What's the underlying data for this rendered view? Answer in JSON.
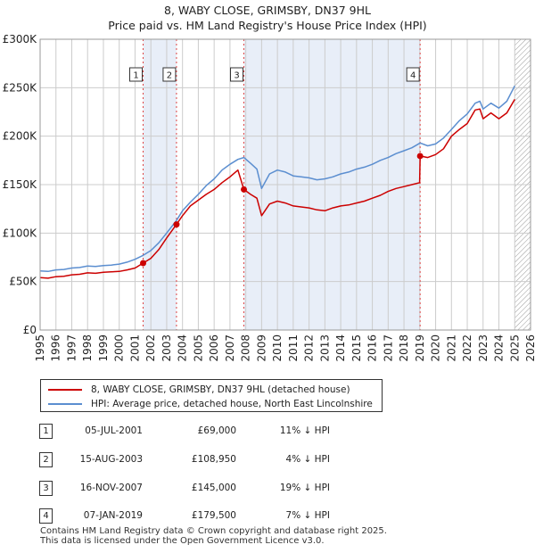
{
  "title_line1": "8, WABY CLOSE, GRIMSBY, DN37 9HL",
  "title_line2": "Price paid vs. HM Land Registry's House Price Index (HPI)",
  "colors": {
    "property": "#cc0000",
    "hpi": "#5b8ed0",
    "shade": "#e8eef8",
    "marker_line": "#dd4444",
    "grid": "#cccccc"
  },
  "chart_data": {
    "type": "line",
    "xlim": [
      1995,
      2026
    ],
    "ylim": [
      0,
      300000
    ],
    "yticks": [
      0,
      50000,
      100000,
      150000,
      200000,
      250000,
      300000
    ],
    "ytick_labels": [
      "£0",
      "£50K",
      "£100K",
      "£150K",
      "£200K",
      "£250K",
      "£300K"
    ],
    "xticks": [
      1995,
      1996,
      1997,
      1998,
      1999,
      2000,
      2001,
      2002,
      2003,
      2004,
      2005,
      2006,
      2007,
      2008,
      2009,
      2010,
      2011,
      2012,
      2013,
      2014,
      2015,
      2016,
      2017,
      2018,
      2019,
      2020,
      2021,
      2022,
      2023,
      2024,
      2025,
      2026
    ],
    "xtick_labels": [
      "1995",
      "1996",
      "1997",
      "1998",
      "1999",
      "2000",
      "2001",
      "2002",
      "2003",
      "2004",
      "2005",
      "2006",
      "2007",
      "2008",
      "2009",
      "2010",
      "2011",
      "2012",
      "2013",
      "2014",
      "2015",
      "2016",
      "2017",
      "2018",
      "2019",
      "2020",
      "2021",
      "2022",
      "2023",
      "2024",
      "2025",
      "2026"
    ],
    "shaded_spans": [
      [
        2001.51,
        2003.62
      ],
      [
        2007.88,
        2019.02
      ]
    ],
    "future_hatch_start": 2025.0,
    "series": [
      {
        "name": "8, WABY CLOSE, GRIMSBY, DN37 9HL (detached house)",
        "color": "#cc0000",
        "points": [
          [
            1995.0,
            54000
          ],
          [
            1995.5,
            53500
          ],
          [
            1996.0,
            55000
          ],
          [
            1996.5,
            55500
          ],
          [
            1997.0,
            57000
          ],
          [
            1997.5,
            57500
          ],
          [
            1998.0,
            59000
          ],
          [
            1998.5,
            58500
          ],
          [
            1999.0,
            59500
          ],
          [
            1999.5,
            60000
          ],
          [
            2000.0,
            60500
          ],
          [
            2000.5,
            62000
          ],
          [
            2001.0,
            64000
          ],
          [
            2001.51,
            69000
          ],
          [
            2002.0,
            74000
          ],
          [
            2002.5,
            83000
          ],
          [
            2003.0,
            95000
          ],
          [
            2003.62,
            108950
          ],
          [
            2004.0,
            118000
          ],
          [
            2004.5,
            128000
          ],
          [
            2005.0,
            134000
          ],
          [
            2005.5,
            140000
          ],
          [
            2006.0,
            145000
          ],
          [
            2006.5,
            152000
          ],
          [
            2007.0,
            158000
          ],
          [
            2007.5,
            165000
          ],
          [
            2007.88,
            145000
          ],
          [
            2008.3,
            140000
          ],
          [
            2008.7,
            136000
          ],
          [
            2009.0,
            118000
          ],
          [
            2009.5,
            130000
          ],
          [
            2010.0,
            133000
          ],
          [
            2010.5,
            131000
          ],
          [
            2011.0,
            128000
          ],
          [
            2011.5,
            127000
          ],
          [
            2012.0,
            126000
          ],
          [
            2012.5,
            124000
          ],
          [
            2013.0,
            123000
          ],
          [
            2013.5,
            126000
          ],
          [
            2014.0,
            128000
          ],
          [
            2014.5,
            129000
          ],
          [
            2015.0,
            131000
          ],
          [
            2015.5,
            133000
          ],
          [
            2016.0,
            136000
          ],
          [
            2016.5,
            139000
          ],
          [
            2017.0,
            143000
          ],
          [
            2017.5,
            146000
          ],
          [
            2018.0,
            148000
          ],
          [
            2018.5,
            150000
          ],
          [
            2018.99,
            152000
          ],
          [
            2019.02,
            179500
          ],
          [
            2019.5,
            178000
          ],
          [
            2020.0,
            181000
          ],
          [
            2020.5,
            187000
          ],
          [
            2021.0,
            200000
          ],
          [
            2021.5,
            207000
          ],
          [
            2022.0,
            213000
          ],
          [
            2022.5,
            227000
          ],
          [
            2022.8,
            228000
          ],
          [
            2023.0,
            218000
          ],
          [
            2023.5,
            224000
          ],
          [
            2024.0,
            218000
          ],
          [
            2024.5,
            224000
          ],
          [
            2025.0,
            238000
          ]
        ]
      },
      {
        "name": "HPI: Average price, detached house, North East Lincolnshire",
        "color": "#5b8ed0",
        "points": [
          [
            1995.0,
            61000
          ],
          [
            1995.5,
            60500
          ],
          [
            1996.0,
            62000
          ],
          [
            1996.5,
            62500
          ],
          [
            1997.0,
            64000
          ],
          [
            1997.5,
            64500
          ],
          [
            1998.0,
            66000
          ],
          [
            1998.5,
            65500
          ],
          [
            1999.0,
            66500
          ],
          [
            1999.5,
            67000
          ],
          [
            2000.0,
            68000
          ],
          [
            2000.5,
            70000
          ],
          [
            2001.0,
            73000
          ],
          [
            2001.51,
            77000
          ],
          [
            2002.0,
            82000
          ],
          [
            2002.5,
            90000
          ],
          [
            2003.0,
            100000
          ],
          [
            2003.62,
            113000
          ],
          [
            2004.0,
            123000
          ],
          [
            2004.5,
            132000
          ],
          [
            2005.0,
            140000
          ],
          [
            2005.5,
            149000
          ],
          [
            2006.0,
            156000
          ],
          [
            2006.5,
            165000
          ],
          [
            2007.0,
            171000
          ],
          [
            2007.5,
            176000
          ],
          [
            2007.88,
            178000
          ],
          [
            2008.3,
            172000
          ],
          [
            2008.7,
            166000
          ],
          [
            2009.0,
            146000
          ],
          [
            2009.5,
            161000
          ],
          [
            2010.0,
            165000
          ],
          [
            2010.5,
            163000
          ],
          [
            2011.0,
            159000
          ],
          [
            2011.5,
            158000
          ],
          [
            2012.0,
            157000
          ],
          [
            2012.5,
            155000
          ],
          [
            2013.0,
            156000
          ],
          [
            2013.5,
            158000
          ],
          [
            2014.0,
            161000
          ],
          [
            2014.5,
            163000
          ],
          [
            2015.0,
            166000
          ],
          [
            2015.5,
            168000
          ],
          [
            2016.0,
            171000
          ],
          [
            2016.5,
            175000
          ],
          [
            2017.0,
            178000
          ],
          [
            2017.5,
            182000
          ],
          [
            2018.0,
            185000
          ],
          [
            2018.5,
            188000
          ],
          [
            2019.02,
            193000
          ],
          [
            2019.5,
            190000
          ],
          [
            2020.0,
            192000
          ],
          [
            2020.5,
            198000
          ],
          [
            2021.0,
            207000
          ],
          [
            2021.5,
            216000
          ],
          [
            2022.0,
            223000
          ],
          [
            2022.5,
            234000
          ],
          [
            2022.8,
            236000
          ],
          [
            2023.0,
            228000
          ],
          [
            2023.5,
            234000
          ],
          [
            2024.0,
            229000
          ],
          [
            2024.5,
            236000
          ],
          [
            2025.0,
            252000
          ]
        ]
      }
    ],
    "markers": [
      {
        "label": "1",
        "x": 2001.51,
        "y": 69000
      },
      {
        "label": "2",
        "x": 2003.62,
        "y": 108950
      },
      {
        "label": "3",
        "x": 2007.88,
        "y": 145000
      },
      {
        "label": "4",
        "x": 2019.02,
        "y": 179500
      }
    ]
  },
  "legend": [
    {
      "label": "8, WABY CLOSE, GRIMSBY, DN37 9HL (detached house)",
      "color": "#cc0000"
    },
    {
      "label": "HPI: Average price, detached house, North East Lincolnshire",
      "color": "#5b8ed0"
    }
  ],
  "sales": [
    {
      "num": "1",
      "date": "05-JUL-2001",
      "price": "£69,000",
      "hpi": "11% ↓ HPI"
    },
    {
      "num": "2",
      "date": "15-AUG-2003",
      "price": "£108,950",
      "hpi": "4% ↓ HPI"
    },
    {
      "num": "3",
      "date": "16-NOV-2007",
      "price": "£145,000",
      "hpi": "19% ↓ HPI"
    },
    {
      "num": "4",
      "date": "07-JAN-2019",
      "price": "£179,500",
      "hpi": "7% ↓ HPI"
    }
  ],
  "footer_line1": "Contains HM Land Registry data © Crown copyright and database right 2025.",
  "footer_line2": "This data is licensed under the Open Government Licence v3.0."
}
